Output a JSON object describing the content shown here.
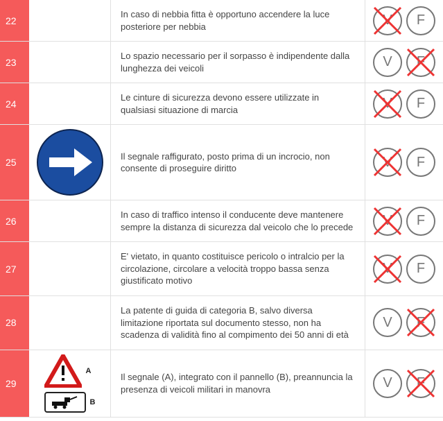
{
  "colors": {
    "num_bg": "#f55a5a",
    "num_fg": "#ffffff",
    "border": "#e0e0e0",
    "circle": "#777777",
    "cross": "#ee3333",
    "sign25_bg": "#1b4da0",
    "sign25_border": "#0d2450",
    "tri_border": "#d21a1a",
    "text": "#444444"
  },
  "vf_labels": {
    "v": "V",
    "f": "F"
  },
  "rows": [
    {
      "num": "22",
      "sign": null,
      "text": "In caso di nebbia fitta è opportuno accendere la luce posteriore per nebbia",
      "v_crossed": true,
      "f_crossed": false
    },
    {
      "num": "23",
      "sign": null,
      "text": "Lo spazio necessario per il sorpasso è indipendente dalla lunghezza dei veicoli",
      "v_crossed": false,
      "f_crossed": true
    },
    {
      "num": "24",
      "sign": null,
      "text": "Le cinture di sicurezza devono essere utilizzate in qualsiasi situazione di marcia",
      "v_crossed": true,
      "f_crossed": false
    },
    {
      "num": "25",
      "sign": "arrow_right",
      "text": "Il segnale raffigurato, posto prima di un incrocio, non consente di proseguire diritto",
      "v_crossed": true,
      "f_crossed": false
    },
    {
      "num": "26",
      "sign": null,
      "text": "In caso di traffico intenso il conducente deve mantenere sempre la distanza di sicurezza dal veicolo che lo precede",
      "v_crossed": true,
      "f_crossed": false
    },
    {
      "num": "27",
      "sign": null,
      "text": "E' vietato, in quanto costituisce pericolo o intralcio per la circolazione, circolare a velocità troppo bassa senza giustificato motivo",
      "v_crossed": true,
      "f_crossed": false
    },
    {
      "num": "28",
      "sign": null,
      "text": "La patente di guida di categoria B, salvo diversa limitazione riportata sul documento stesso, non ha scadenza di validità fino al compimento dei 50 anni di età",
      "v_crossed": false,
      "f_crossed": true
    },
    {
      "num": "29",
      "sign": "danger_panel",
      "sign_labels": {
        "a": "A",
        "b": "B"
      },
      "text": "Il segnale (A), integrato con il pannello (B), preannuncia la presenza di veicoli militari in manovra",
      "v_crossed": false,
      "f_crossed": true
    }
  ]
}
